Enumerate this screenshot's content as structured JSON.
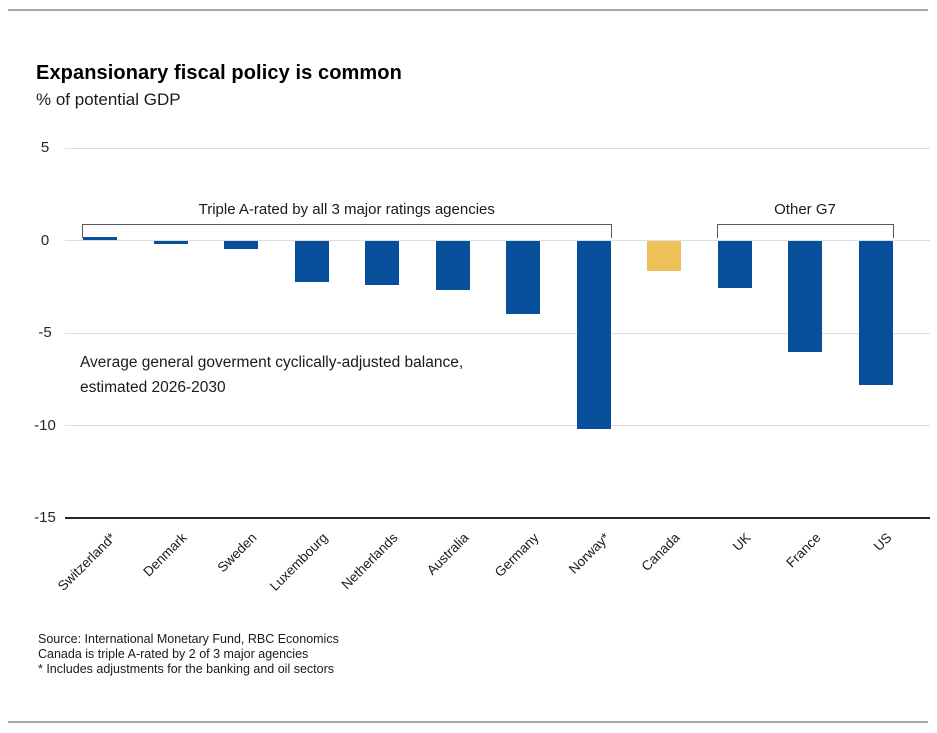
{
  "header": {
    "title": "Expansionary fiscal policy is common",
    "subtitle": "% of potential GDP"
  },
  "chart_data": {
    "type": "bar",
    "title": "Expansionary fiscal policy is common",
    "ylabel": "% of potential GDP",
    "categories": [
      "Switzerland*",
      "Denmark",
      "Sweden",
      "Luxembourg",
      "Netherlands",
      "Australia",
      "Germany",
      "Norway*",
      "Canada",
      "UK",
      "France",
      "US"
    ],
    "values": [
      0.2,
      -0.2,
      -0.45,
      -2.25,
      -2.4,
      -2.7,
      -3.95,
      -10.2,
      -1.65,
      -2.55,
      -6.0,
      -7.8
    ],
    "ylim": [
      -15,
      5
    ],
    "yticks": [
      5,
      0,
      -5,
      -10,
      -15
    ],
    "grid": true,
    "highlight_category": "Canada",
    "colors": {
      "bar_default": "#084F9B",
      "bar_highlight": "#F0C15B",
      "gridline": "#dedede",
      "axis_line": "#262626"
    },
    "groups": [
      {
        "label": "Triple A-rated by all 3 major ratings agencies",
        "span": [
          0,
          7
        ]
      },
      {
        "label": "Other G7",
        "span": [
          9,
          11
        ]
      }
    ],
    "note": {
      "line1": "Average general goverment cyclically-adjusted balance,",
      "line2": "estimated 2026-2030"
    }
  },
  "footer": {
    "line1": "Source: International Monetary Fund, RBC Economics",
    "line2": "Canada is triple A-rated by 2 of 3 major agencies",
    "line3": "* Includes adjustments for the banking and oil sectors"
  }
}
